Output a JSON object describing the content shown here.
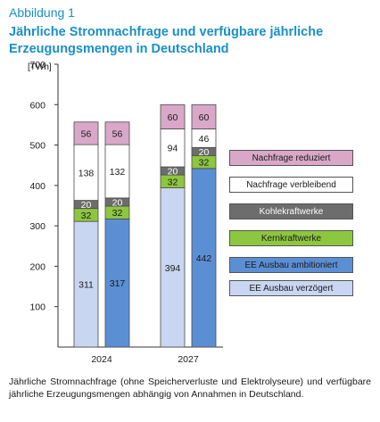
{
  "figure": {
    "label": "Abbildung 1",
    "title": "Jährliche Stromnachfrage und verfügbare jährliche Erzeugungsmengen in Deutschland",
    "caption": "Jährliche Stromnachfrage (ohne Speicherverluste und Elektrolyseure) und verfügbare jährliche Erzeugungsmengen abhängig von Annahmen in Deutschland."
  },
  "colors": {
    "ee_verzoegert": "#c9d6f1",
    "ee_ambitioniert": "#5b8fd4",
    "kern": "#8dc63f",
    "kohle": "#6d6d6d",
    "nachfrage_verbleibend": "#ffffff",
    "nachfrage_reduziert": "#d9a8c8",
    "title_blue": "#1a8fc6"
  },
  "legend": [
    {
      "key": "reduced",
      "label": "Nachfrage reduziert"
    },
    {
      "key": "remaining",
      "label": "Nachfrage verbleibend"
    },
    {
      "key": "coal",
      "label": "Kohlekraftwerke"
    },
    {
      "key": "nuclear",
      "label": "Kernkraftwerke"
    },
    {
      "key": "ambitious",
      "label": "EE Ausbau ambitioniert"
    },
    {
      "key": "delayed",
      "label": "EE Ausbau verzögert"
    }
  ],
  "chart_data": {
    "type": "bar",
    "stacked": true,
    "title": "",
    "ylabel": "[TWh]",
    "ylim": [
      0,
      700
    ],
    "yticks": [
      100,
      200,
      300,
      400,
      500,
      600,
      700
    ],
    "categories": [
      "2024",
      "2027"
    ],
    "bars": [
      {
        "year": "2024",
        "variant": "EE Ausbau verzögert",
        "segments": [
          {
            "name": "EE Ausbau verzögert",
            "value": 311,
            "color": "#c9d6f1"
          },
          {
            "name": "Kernkraftwerke",
            "value": 32,
            "color": "#8dc63f"
          },
          {
            "name": "Kohlekraftwerke",
            "value": 20,
            "color": "#6d6d6d"
          },
          {
            "name": "Nachfrage verbleibend",
            "value": 138,
            "color": "#ffffff"
          },
          {
            "name": "Nachfrage reduziert",
            "value": 56,
            "color": "#d9a8c8"
          }
        ]
      },
      {
        "year": "2024",
        "variant": "EE Ausbau ambitioniert",
        "segments": [
          {
            "name": "EE Ausbau ambitioniert",
            "value": 317,
            "color": "#5b8fd4"
          },
          {
            "name": "Kernkraftwerke",
            "value": 32,
            "color": "#8dc63f"
          },
          {
            "name": "Kohlekraftwerke",
            "value": 20,
            "color": "#6d6d6d"
          },
          {
            "name": "Nachfrage verbleibend",
            "value": 132,
            "color": "#ffffff"
          },
          {
            "name": "Nachfrage reduziert",
            "value": 56,
            "color": "#d9a8c8"
          }
        ]
      },
      {
        "year": "2027",
        "variant": "EE Ausbau verzögert",
        "segments": [
          {
            "name": "EE Ausbau verzögert",
            "value": 394,
            "color": "#c9d6f1"
          },
          {
            "name": "Kernkraftwerke",
            "value": 32,
            "color": "#8dc63f"
          },
          {
            "name": "Kohlekraftwerke",
            "value": 20,
            "color": "#6d6d6d"
          },
          {
            "name": "Nachfrage verbleibend",
            "value": 94,
            "color": "#ffffff"
          },
          {
            "name": "Nachfrage reduziert",
            "value": 60,
            "color": "#d9a8c8"
          }
        ]
      },
      {
        "year": "2027",
        "variant": "EE Ausbau ambitioniert",
        "segments": [
          {
            "name": "EE Ausbau ambitioniert",
            "value": 442,
            "color": "#5b8fd4"
          },
          {
            "name": "Kernkraftwerke",
            "value": 32,
            "color": "#8dc63f"
          },
          {
            "name": "Kohlekraftwerke",
            "value": 20,
            "color": "#6d6d6d"
          },
          {
            "name": "Nachfrage verbleibend",
            "value": 46,
            "color": "#ffffff"
          },
          {
            "name": "Nachfrage reduziert",
            "value": 60,
            "color": "#d9a8c8"
          }
        ]
      }
    ]
  }
}
